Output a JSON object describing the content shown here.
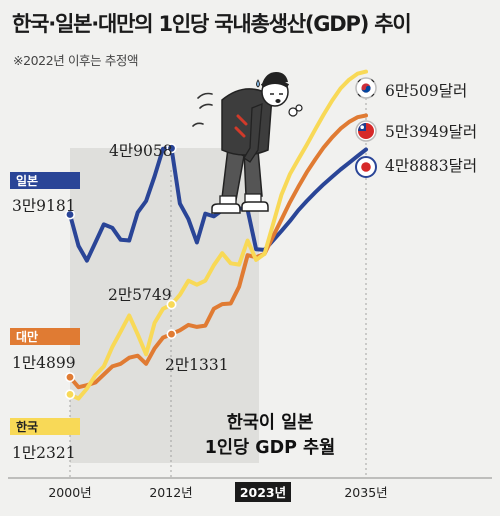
{
  "title": "한국·일본·대만의 1인당 국내총생산(GDP) 추이",
  "subtitle": "※2022년 이후는 추정액",
  "annotation": {
    "line1": "한국이 일본",
    "line2": "1인당 GDP 추월"
  },
  "chart_data": {
    "type": "line",
    "title": "한국·일본·대만의 1인당 국내총생산(GDP) 추이",
    "subtitle": "※2022년 이후는 추정액",
    "x_tick_labels": [
      "2000년",
      "2012년",
      "2023년",
      "2035년"
    ],
    "x_ticks": [
      2000,
      2012,
      2023,
      2035
    ],
    "highlight_tick": "2023년",
    "xlim": [
      2000,
      2035
    ],
    "ylim": [
      10000,
      62000
    ],
    "grid": false,
    "series": [
      {
        "name": "일본",
        "color": "#2a4597",
        "x": [
          2000,
          2001,
          2002,
          2003,
          2004,
          2005,
          2006,
          2007,
          2008,
          2009,
          2010,
          2011,
          2012,
          2013,
          2014,
          2015,
          2016,
          2017,
          2018,
          2019,
          2020,
          2021,
          2022,
          2023,
          2024,
          2025,
          2026,
          2027,
          2028,
          2029,
          2030,
          2031,
          2032,
          2033,
          2034,
          2035
        ],
        "y": [
          39181,
          34500,
          32300,
          35000,
          37700,
          37200,
          35400,
          35300,
          39500,
          41200,
          44900,
          49000,
          49058,
          40800,
          38500,
          35000,
          39300,
          38900,
          39800,
          40500,
          40100,
          39900,
          34000,
          33900,
          35300,
          36700,
          38200,
          39800,
          41200,
          42500,
          43700,
          44800,
          45900,
          46900,
          47900,
          48883
        ]
      },
      {
        "name": "대만",
        "color": "#e07b33",
        "x": [
          2000,
          2001,
          2002,
          2003,
          2004,
          2005,
          2006,
          2007,
          2008,
          2009,
          2010,
          2011,
          2012,
          2013,
          2014,
          2015,
          2016,
          2017,
          2018,
          2019,
          2020,
          2021,
          2022,
          2023,
          2024,
          2025,
          2026,
          2027,
          2028,
          2029,
          2030,
          2031,
          2032,
          2033,
          2034,
          2035
        ],
        "y": [
          14899,
          13400,
          13700,
          14100,
          15300,
          16500,
          16900,
          17800,
          18100,
          16900,
          19200,
          20800,
          21331,
          21900,
          22700,
          22400,
          22600,
          25100,
          25800,
          25900,
          28400,
          33100,
          32800,
          33300,
          35900,
          38400,
          41000,
          43300,
          45500,
          47400,
          49200,
          50700,
          52000,
          53000,
          53700,
          53949
        ]
      },
      {
        "name": "한국",
        "color": "#f8d957",
        "x": [
          2000,
          2001,
          2002,
          2003,
          2004,
          2005,
          2006,
          2007,
          2008,
          2009,
          2010,
          2011,
          2012,
          2013,
          2014,
          2015,
          2016,
          2017,
          2018,
          2019,
          2020,
          2021,
          2022,
          2023,
          2024,
          2025,
          2026,
          2027,
          2028,
          2029,
          2030,
          2031,
          2032,
          2033,
          2034,
          2035
        ],
        "y": [
          12321,
          11700,
          13200,
          15200,
          16500,
          19400,
          21700,
          24100,
          21300,
          18300,
          23000,
          25100,
          25749,
          27200,
          29300,
          28700,
          29300,
          31600,
          33400,
          31900,
          31700,
          35300,
          32400,
          33300,
          37700,
          42100,
          45200,
          47400,
          49600,
          51900,
          54100,
          56200,
          58000,
          59300,
          60200,
          60509
        ]
      }
    ],
    "labels": {
      "japan_start": "3만9181",
      "japan_peak": "4만9058",
      "japan_end": "4만8883달러",
      "taiwan_start": "1만4899",
      "taiwan_mid": "2만1331",
      "taiwan_end": "5만3949달러",
      "korea_start": "1만2321",
      "korea_mid": "2만5749",
      "korea_end": "6만509달러"
    }
  }
}
